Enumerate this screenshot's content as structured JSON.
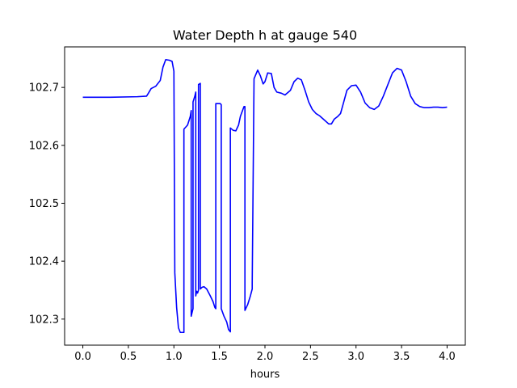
{
  "chart_data": {
    "type": "line",
    "title": "Water Depth h at gauge 540",
    "xlabel": "hours",
    "ylabel": "",
    "xlim": [
      -0.2,
      4.2
    ],
    "ylim": [
      102.255,
      102.77
    ],
    "grid": false,
    "legend": "none",
    "x_ticks": [
      0.0,
      0.5,
      1.0,
      1.5,
      2.0,
      2.5,
      3.0,
      3.5,
      4.0
    ],
    "x_tick_labels": [
      "0.0",
      "0.5",
      "1.0",
      "1.5",
      "2.0",
      "2.5",
      "3.0",
      "3.5",
      "4.0"
    ],
    "y_ticks": [
      102.3,
      102.4,
      102.5,
      102.6,
      102.7
    ],
    "y_tick_labels": [
      "102.3",
      "102.4",
      "102.5",
      "102.6",
      "102.7"
    ],
    "series": [
      {
        "color": "#0000ff",
        "x": [
          0.0,
          0.3,
          0.6,
          0.7,
          0.72,
          0.75,
          0.8,
          0.85,
          0.88,
          0.91,
          0.95,
          0.98,
          1.0,
          1.01,
          1.03,
          1.05,
          1.07,
          1.1,
          1.11,
          1.11,
          1.15,
          1.18,
          1.19,
          1.19,
          1.21,
          1.21,
          1.23,
          1.24,
          1.24,
          1.25,
          1.26,
          1.27,
          1.27,
          1.29,
          1.29,
          1.31,
          1.33,
          1.36,
          1.4,
          1.43,
          1.45,
          1.46,
          1.46,
          1.48,
          1.51,
          1.52,
          1.52,
          1.55,
          1.58,
          1.6,
          1.62,
          1.62,
          1.65,
          1.68,
          1.71,
          1.73,
          1.77,
          1.78,
          1.78,
          1.81,
          1.84,
          1.86,
          1.86,
          1.88,
          1.92,
          1.95,
          1.98,
          2.0,
          2.03,
          2.07,
          2.1,
          2.13,
          2.18,
          2.22,
          2.28,
          2.32,
          2.36,
          2.4,
          2.44,
          2.48,
          2.52,
          2.56,
          2.6,
          2.65,
          2.7,
          2.73,
          2.76,
          2.8,
          2.83,
          2.86,
          2.9,
          2.95,
          3.0,
          3.05,
          3.1,
          3.15,
          3.2,
          3.25,
          3.3,
          3.35,
          3.4,
          3.45,
          3.5,
          3.55,
          3.6,
          3.65,
          3.7,
          3.75,
          3.8,
          3.85,
          3.9,
          3.95,
          4.0
        ],
        "y": [
          102.683,
          102.683,
          102.684,
          102.685,
          102.69,
          102.698,
          102.702,
          102.712,
          102.735,
          102.748,
          102.747,
          102.745,
          102.728,
          102.38,
          102.32,
          102.285,
          102.277,
          102.277,
          102.277,
          102.628,
          102.635,
          102.65,
          102.66,
          102.305,
          102.318,
          102.675,
          102.685,
          102.692,
          102.34,
          102.348,
          102.345,
          102.35,
          102.705,
          102.707,
          102.352,
          102.355,
          102.356,
          102.352,
          102.34,
          102.33,
          102.32,
          102.318,
          102.672,
          102.672,
          102.672,
          102.67,
          102.318,
          102.305,
          102.295,
          102.282,
          102.278,
          102.63,
          102.626,
          102.625,
          102.635,
          102.65,
          102.667,
          102.667,
          102.315,
          102.325,
          102.34,
          102.352,
          102.362,
          102.715,
          102.73,
          102.72,
          102.706,
          102.71,
          102.725,
          102.724,
          102.7,
          102.692,
          102.69,
          102.687,
          102.695,
          102.71,
          102.716,
          102.713,
          102.695,
          102.675,
          102.662,
          102.655,
          102.651,
          102.644,
          102.637,
          102.637,
          102.645,
          102.65,
          102.655,
          102.672,
          102.695,
          102.703,
          102.704,
          102.692,
          102.673,
          102.665,
          102.662,
          102.668,
          102.685,
          102.705,
          102.725,
          102.733,
          102.73,
          102.71,
          102.685,
          102.672,
          102.667,
          102.665,
          102.665,
          102.666,
          102.666,
          102.665,
          102.666
        ]
      }
    ]
  }
}
